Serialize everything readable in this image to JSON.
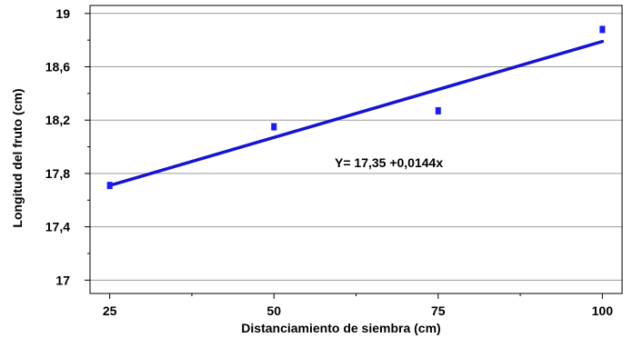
{
  "chart_data": {
    "type": "scatter",
    "title": "",
    "xlabel": "Distanciamiento de siembra  (cm)",
    "ylabel": "Longitud del fruto (cm)",
    "xlim": [
      22,
      103
    ],
    "ylim": [
      16.9,
      19.06
    ],
    "x_ticks": [
      25,
      50,
      75,
      100
    ],
    "x_tick_labels": [
      "25",
      "50",
      "75",
      "100"
    ],
    "y_ticks": [
      17,
      17.4,
      17.8,
      18.2,
      18.6,
      19
    ],
    "y_tick_labels": [
      "17",
      "17,4",
      "17,8",
      "18,2",
      "18,6",
      "19"
    ],
    "grid": "horizontal",
    "series": [
      {
        "points": [
          {
            "x": 25,
            "y": 17.71
          },
          {
            "x": 50,
            "y": 18.15
          },
          {
            "x": 75,
            "y": 18.27
          },
          {
            "x": 100,
            "y": 18.88
          }
        ]
      }
    ],
    "regression": {
      "intercept": 17.35,
      "slope": 0.0144,
      "x_from": 25,
      "x_to": 100
    },
    "equation_label": "Y= 17,35 +0,0144x",
    "colors": {
      "marker": "#1a1aff",
      "line": "#1414d2",
      "grid": "#9a9a9a",
      "axis": "#000000"
    }
  }
}
